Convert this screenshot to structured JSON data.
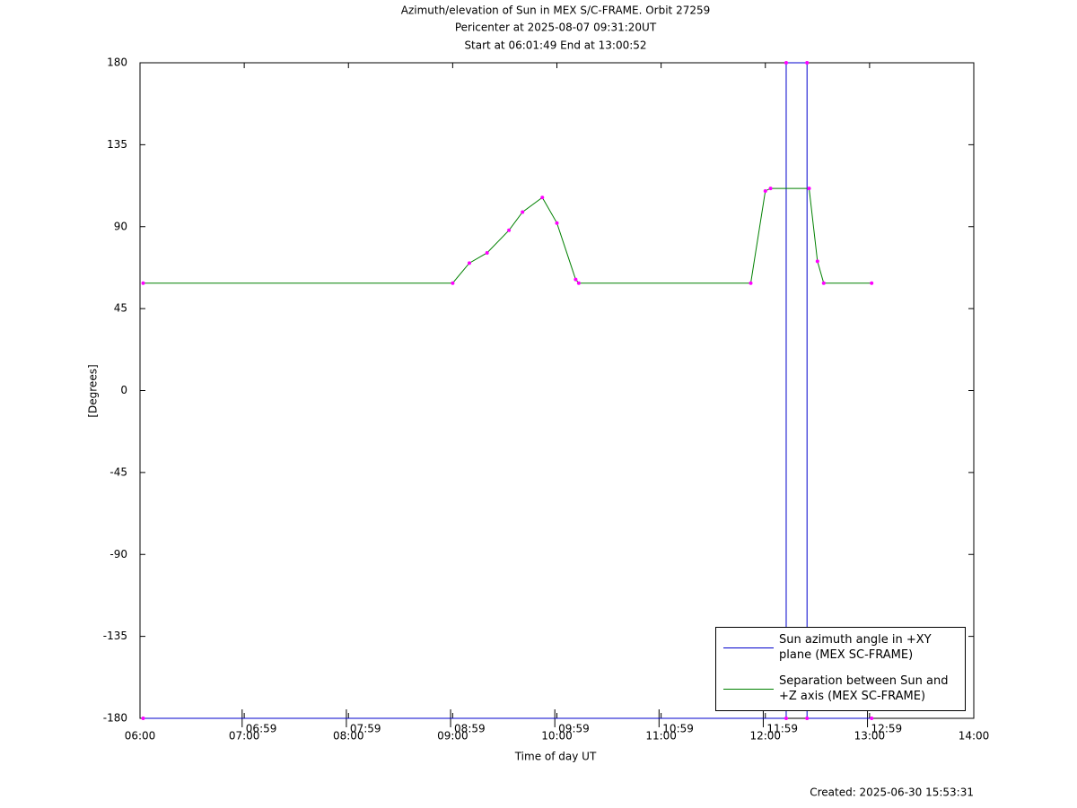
{
  "chart_data": {
    "type": "line",
    "title": "Azimuth/elevation of Sun in MEX S/C-FRAME.  Orbit 27259",
    "subtitle": "Pericenter at 2025-08-07 09:31:20UT",
    "subtitle2": "Start at 06:01:49 End at 13:00:52",
    "xlabel": "Time of day UT",
    "ylabel": "[Degrees]",
    "footer": "Created: 2025-06-30 15:53:31",
    "xlim": [
      6,
      14
    ],
    "xticks": [
      {
        "value": 6,
        "label": "06:00"
      },
      {
        "value": 7,
        "label": "07:00"
      },
      {
        "value": 8,
        "label": "08:00"
      },
      {
        "value": 9,
        "label": "09:00"
      },
      {
        "value": 10,
        "label": "10:00"
      },
      {
        "value": 11,
        "label": "11:00"
      },
      {
        "value": 12,
        "label": "12:00"
      },
      {
        "value": 13,
        "label": "13:00"
      },
      {
        "value": 14,
        "label": "14:00"
      }
    ],
    "ylim": [
      -180,
      180
    ],
    "yticks": [
      -180,
      -135,
      -90,
      -45,
      0,
      45,
      90,
      135,
      180
    ],
    "annotations": [
      {
        "x": 6.98,
        "label": "06:59"
      },
      {
        "x": 7.98,
        "label": "07:59"
      },
      {
        "x": 8.98,
        "label": "08:59"
      },
      {
        "x": 9.98,
        "label": "09:59"
      },
      {
        "x": 10.98,
        "label": "10:59"
      },
      {
        "x": 11.98,
        "label": "11:59"
      },
      {
        "x": 12.98,
        "label": "12:59"
      }
    ],
    "marker_color": "#ff00ff",
    "series": [
      {
        "name": "Sun azimuth angle in +XY plane (MEX SC-FRAME)",
        "color": "#0000cc",
        "x": [
          6.03,
          12.2,
          12.2,
          12.4,
          12.4,
          13.02
        ],
        "values": [
          -180,
          -180,
          180,
          180,
          -180,
          -180
        ]
      },
      {
        "name": "Separation between Sun and +Z axis (MEX SC-FRAME)",
        "color": "#008000",
        "x": [
          6.03,
          9.0,
          9.16,
          9.33,
          9.54,
          9.67,
          9.86,
          10.0,
          10.18,
          10.21,
          11.86,
          12.0,
          12.05,
          12.42,
          12.5,
          12.56,
          13.02
        ],
        "values": [
          59,
          59,
          70,
          75.6,
          88,
          98,
          106,
          92,
          61,
          59,
          59,
          109.6,
          111,
          111,
          71,
          59,
          59
        ]
      }
    ]
  }
}
